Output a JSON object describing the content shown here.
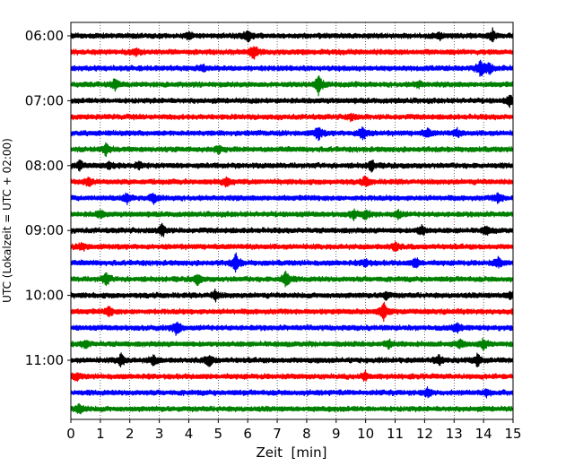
{
  "chart_data": {
    "type": "line",
    "title": "",
    "xlabel": "Zeit  [min]",
    "ylabel": "UTC (Lokalzeit = UTC + 02:00)",
    "xlim": [
      0,
      15
    ],
    "x_ticks": [
      "0",
      "1",
      "2",
      "3",
      "4",
      "5",
      "6",
      "7",
      "8",
      "9",
      "10",
      "11",
      "12",
      "13",
      "14",
      "15"
    ],
    "y_tick_labels": [
      "06:00",
      "07:00",
      "08:00",
      "09:00",
      "10:00",
      "11:00"
    ],
    "grid": "vertical dotted lines at each minute",
    "trace_colors": [
      "#000000",
      "#ff0000",
      "#0000ff",
      "#008000"
    ],
    "traces": [
      {
        "start": "06:00",
        "color": "#000000",
        "events": [
          [
            4.0,
            0.3
          ],
          [
            6.0,
            0.6
          ],
          [
            12.5,
            0.35
          ],
          [
            14.3,
            0.6
          ]
        ]
      },
      {
        "start": "06:15",
        "color": "#ff0000",
        "events": [
          [
            2.2,
            0.3
          ],
          [
            6.2,
            0.85
          ]
        ]
      },
      {
        "start": "06:30",
        "color": "#0000ff",
        "events": [
          [
            4.5,
            0.3
          ],
          [
            13.9,
            0.9
          ],
          [
            14.2,
            0.5
          ]
        ]
      },
      {
        "start": "06:45",
        "color": "#008000",
        "events": [
          [
            1.5,
            0.6
          ],
          [
            8.4,
            1.0
          ],
          [
            11.8,
            0.3
          ]
        ]
      },
      {
        "start": "07:00",
        "color": "#000000",
        "events": [
          [
            14.9,
            0.5
          ]
        ]
      },
      {
        "start": "07:15",
        "color": "#ff0000",
        "events": [
          [
            9.5,
            0.3
          ]
        ]
      },
      {
        "start": "07:30",
        "color": "#0000ff",
        "events": [
          [
            8.4,
            0.7
          ],
          [
            9.9,
            0.8
          ],
          [
            12.1,
            0.45
          ],
          [
            13.1,
            0.35
          ]
        ]
      },
      {
        "start": "07:45",
        "color": "#008000",
        "events": [
          [
            1.2,
            0.6
          ],
          [
            5.0,
            0.3
          ]
        ]
      },
      {
        "start": "08:00",
        "color": "#000000",
        "events": [
          [
            0.3,
            0.5
          ],
          [
            1.3,
            0.35
          ],
          [
            2.3,
            0.3
          ],
          [
            10.2,
            0.5
          ]
        ]
      },
      {
        "start": "08:15",
        "color": "#ff0000",
        "events": [
          [
            0.6,
            0.4
          ],
          [
            5.3,
            0.5
          ],
          [
            10.0,
            0.5
          ]
        ]
      },
      {
        "start": "08:30",
        "color": "#0000ff",
        "events": [
          [
            1.9,
            0.5
          ],
          [
            2.8,
            0.55
          ],
          [
            14.5,
            0.5
          ]
        ]
      },
      {
        "start": "08:45",
        "color": "#008000",
        "events": [
          [
            1.0,
            0.35
          ],
          [
            9.6,
            0.45
          ],
          [
            10.0,
            0.4
          ],
          [
            11.1,
            0.4
          ]
        ]
      },
      {
        "start": "09:00",
        "color": "#000000",
        "events": [
          [
            3.1,
            0.6
          ],
          [
            11.9,
            0.5
          ],
          [
            14.1,
            0.4
          ]
        ]
      },
      {
        "start": "09:15",
        "color": "#ff0000",
        "events": [
          [
            0.4,
            0.4
          ],
          [
            11.0,
            0.45
          ]
        ]
      },
      {
        "start": "09:30",
        "color": "#0000ff",
        "events": [
          [
            5.6,
            0.9
          ],
          [
            10.0,
            0.4
          ],
          [
            11.7,
            0.5
          ],
          [
            14.5,
            0.5
          ]
        ]
      },
      {
        "start": "09:45",
        "color": "#008000",
        "events": [
          [
            1.2,
            0.6
          ],
          [
            4.3,
            0.5
          ],
          [
            7.3,
            0.9
          ]
        ]
      },
      {
        "start": "10:00",
        "color": "#000000",
        "events": [
          [
            4.9,
            0.5
          ],
          [
            10.7,
            0.35
          ],
          [
            14.9,
            0.4
          ]
        ]
      },
      {
        "start": "10:15",
        "color": "#ff0000",
        "events": [
          [
            1.3,
            0.45
          ],
          [
            10.6,
            0.9
          ]
        ]
      },
      {
        "start": "10:30",
        "color": "#0000ff",
        "events": [
          [
            3.6,
            0.85
          ],
          [
            13.1,
            0.5
          ]
        ]
      },
      {
        "start": "10:45",
        "color": "#008000",
        "events": [
          [
            0.5,
            0.4
          ],
          [
            10.8,
            0.45
          ],
          [
            13.2,
            0.4
          ],
          [
            14.0,
            0.5
          ]
        ]
      },
      {
        "start": "11:00",
        "color": "#000000",
        "events": [
          [
            1.7,
            0.6
          ],
          [
            2.8,
            0.5
          ],
          [
            4.7,
            0.6
          ],
          [
            12.5,
            0.5
          ],
          [
            13.8,
            0.6
          ]
        ]
      },
      {
        "start": "11:15",
        "color": "#ff0000",
        "events": [
          [
            0.2,
            0.35
          ],
          [
            10.0,
            0.4
          ]
        ]
      },
      {
        "start": "11:30",
        "color": "#0000ff",
        "events": [
          [
            12.1,
            0.35
          ],
          [
            14.1,
            0.3
          ]
        ]
      },
      {
        "start": "11:45",
        "color": "#008000",
        "events": [
          [
            0.3,
            0.55
          ]
        ]
      }
    ]
  }
}
